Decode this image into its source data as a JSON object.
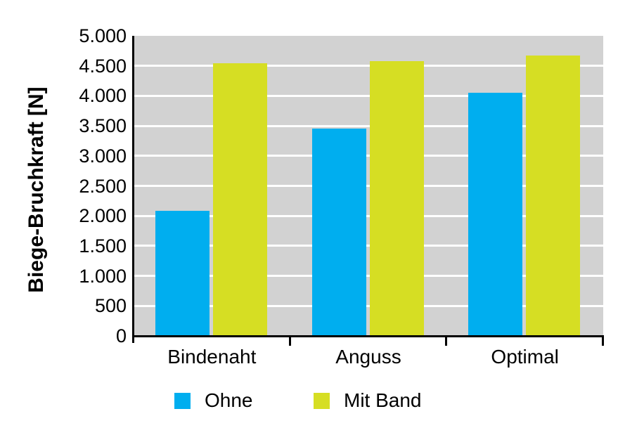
{
  "chart_data": {
    "type": "bar",
    "title": "",
    "xlabel": "",
    "ylabel": "Biege-Bruchkraft [N]",
    "categories": [
      "Bindenaht",
      "Anguss",
      "Optimal"
    ],
    "series": [
      {
        "name": "Ohne",
        "color": "#00AEEF",
        "values": [
          2080,
          3450,
          4050
        ]
      },
      {
        "name": "Mit Band",
        "color": "#D6DE23",
        "values": [
          4540,
          4580,
          4670
        ]
      }
    ],
    "ylim": [
      0,
      5000
    ],
    "ytick_step": 500,
    "ytick_labels": [
      "0",
      "500",
      "1.000",
      "1.500",
      "2.000",
      "2.500",
      "3.000",
      "3.500",
      "4.000",
      "4.500",
      "5.000"
    ],
    "grid": true,
    "legend_position": "bottom",
    "colors": {
      "plot_background": "#D2D2D2",
      "gridline": "#FFFFFF",
      "axis": "#000000",
      "text": "#000000",
      "page_background": "#FFFFFF"
    }
  }
}
